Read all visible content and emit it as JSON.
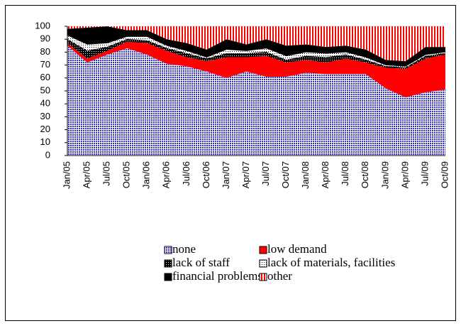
{
  "chart_data": {
    "type": "stacked_area",
    "categories": [
      "Jan/05",
      "Apr/05",
      "Jul/05",
      "Oct/05",
      "Jan/06",
      "Apr/06",
      "Jul/06",
      "Oct/06",
      "Jan/07",
      "Apr/07",
      "Jul/07",
      "Oct/07",
      "Jan/08",
      "Apr/08",
      "Jul/08",
      "Oct/08",
      "Jan/09",
      "Apr/09",
      "Jul/09",
      "Oct/09"
    ],
    "series": [
      {
        "name": "none",
        "color": "#3333cc",
        "values": [
          85,
          72,
          78,
          83,
          78,
          71,
          69,
          65,
          60,
          65,
          61,
          61,
          64,
          63,
          63,
          63,
          52,
          45,
          49,
          51
        ]
      },
      {
        "name": "low demand",
        "color": "#ff0000",
        "values": [
          2,
          3,
          3,
          5,
          9,
          10,
          7,
          8,
          16,
          11,
          16,
          11,
          10,
          9,
          12,
          9,
          16,
          22,
          26,
          27
        ]
      },
      {
        "name": "lack of staff",
        "color": "#000000",
        "values": [
          3,
          6,
          3,
          2,
          2,
          2,
          3,
          2,
          3,
          3,
          3,
          2,
          3,
          4,
          3,
          2,
          1,
          1,
          2,
          1
        ]
      },
      {
        "name": "lack of materials, facilities",
        "color": "#ffffff",
        "values": [
          3,
          5,
          3,
          2,
          3,
          2,
          2,
          1,
          3,
          2,
          3,
          3,
          3,
          3,
          2,
          2,
          1,
          1,
          1,
          1
        ]
      },
      {
        "name": "financial problems",
        "color": "#000000",
        "values": [
          5,
          13,
          13,
          5,
          5,
          5,
          6,
          6,
          8,
          5,
          7,
          8,
          6,
          5,
          5,
          6,
          4,
          4,
          6,
          4
        ]
      },
      {
        "name": "other",
        "color": "#ff0000",
        "values": [
          2,
          1,
          0,
          3,
          3,
          10,
          13,
          18,
          10,
          14,
          10,
          15,
          14,
          16,
          15,
          18,
          26,
          27,
          16,
          16
        ]
      }
    ],
    "ylim": [
      0,
      100
    ],
    "yticks": [
      0,
      10,
      20,
      30,
      40,
      50,
      60,
      70,
      80,
      90,
      100
    ]
  }
}
